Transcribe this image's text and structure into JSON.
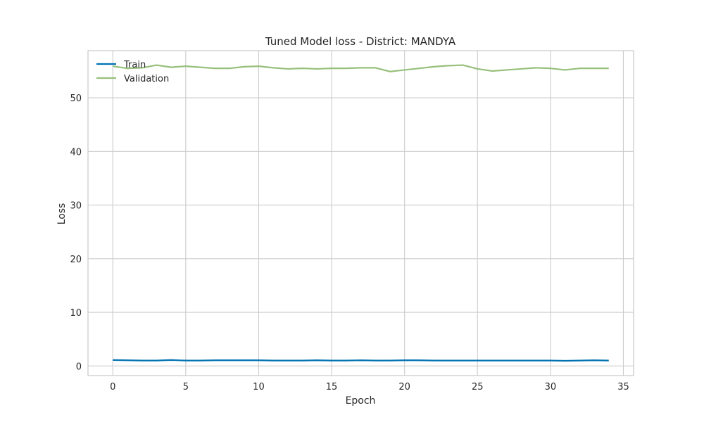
{
  "chart_data": {
    "type": "line",
    "title": "Tuned Model loss - District: MANDYA",
    "xlabel": "Epoch",
    "ylabel": "Loss",
    "xlim": [
      -1.7,
      35.7
    ],
    "ylim": [
      -1.8,
      58.8
    ],
    "xticks": [
      0,
      5,
      10,
      15,
      20,
      25,
      30,
      35
    ],
    "yticks": [
      0,
      10,
      20,
      30,
      40,
      50
    ],
    "grid": true,
    "legend": "top-left",
    "x": [
      0,
      1,
      2,
      3,
      4,
      5,
      6,
      7,
      8,
      9,
      10,
      11,
      12,
      13,
      14,
      15,
      16,
      17,
      18,
      19,
      20,
      21,
      22,
      23,
      24,
      25,
      26,
      27,
      28,
      29,
      30,
      31,
      32,
      33,
      34
    ],
    "series": [
      {
        "name": "Train",
        "color": "#0072b2",
        "values": [
          1.1,
          1.05,
          1.0,
          1.0,
          1.1,
          1.0,
          1.0,
          1.05,
          1.05,
          1.05,
          1.05,
          1.0,
          1.0,
          1.0,
          1.05,
          1.0,
          1.0,
          1.05,
          1.0,
          1.0,
          1.05,
          1.05,
          1.0,
          1.0,
          1.0,
          1.0,
          1.0,
          1.0,
          1.0,
          1.0,
          1.0,
          0.95,
          1.0,
          1.05,
          1.0
        ]
      },
      {
        "name": "Validation",
        "color": "#96c07b",
        "values": [
          55.9,
          55.5,
          55.6,
          56.1,
          55.7,
          55.9,
          55.7,
          55.5,
          55.5,
          55.8,
          55.9,
          55.6,
          55.4,
          55.5,
          55.4,
          55.5,
          55.5,
          55.6,
          55.6,
          54.9,
          55.2,
          55.5,
          55.8,
          56.0,
          56.1,
          55.4,
          55.0,
          55.2,
          55.4,
          55.6,
          55.5,
          55.2,
          55.5,
          55.5,
          55.5
        ]
      }
    ]
  }
}
